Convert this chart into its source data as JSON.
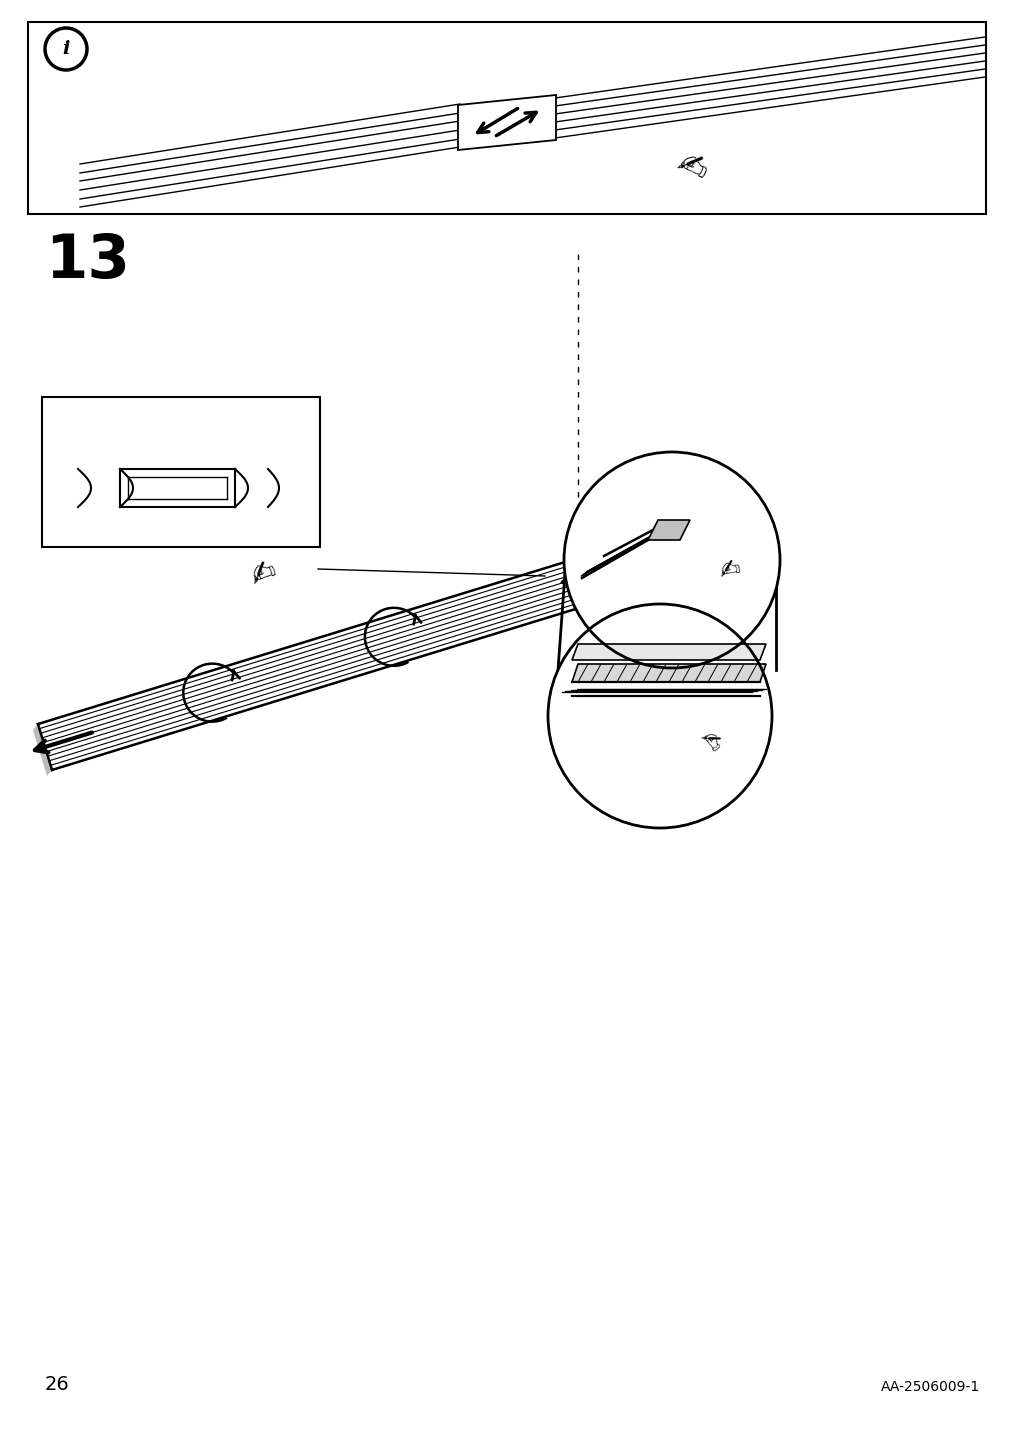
{
  "page_num": "26",
  "doc_ref": "AA-2506009-1",
  "step_num": "13",
  "bg_color": "#ffffff",
  "lc": "#000000"
}
